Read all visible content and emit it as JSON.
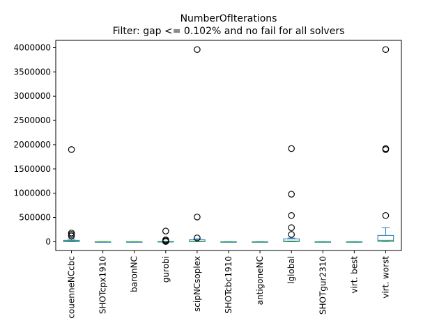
{
  "chart_data": {
    "type": "box",
    "title": "NumberOfIterations",
    "subtitle": "Filter: gap <= 0.102% and no fail for all solvers",
    "xlabel": "",
    "ylabel": "",
    "ylim": [
      -180000,
      4150000
    ],
    "yticks": [
      0,
      500000,
      1000000,
      1500000,
      2000000,
      2500000,
      3000000,
      3500000,
      4000000
    ],
    "ytick_labels": [
      "0",
      "500000",
      "1000000",
      "1500000",
      "2000000",
      "2500000",
      "3000000",
      "3500000",
      "4000000"
    ],
    "grid": false,
    "colors": {
      "box": "#1f77b4",
      "median": "#2ca02c",
      "outlier": "#000000"
    },
    "categories": [
      "couenneNCcbc",
      "SHOTcpx1910",
      "baronNC",
      "gurobi",
      "scipNCsoplex",
      "SHOTcbc1910",
      "antigoneNC",
      "lglobal",
      "SHOTgur2310",
      "virt. best",
      "virt. worst"
    ],
    "boxes": [
      {
        "name": "couenneNCcbc",
        "whisker_low": 0,
        "q1": 3000,
        "median": 12000,
        "q3": 30000,
        "whisker_high": 55000,
        "outliers": [
          1900000,
          180000,
          150000,
          120000
        ]
      },
      {
        "name": "SHOTcpx1910",
        "whisker_low": 0,
        "q1": 0,
        "median": 0,
        "q3": 1000,
        "whisker_high": 2000,
        "outliers": []
      },
      {
        "name": "baronNC",
        "whisker_low": 0,
        "q1": 0,
        "median": 0,
        "q3": 1000,
        "whisker_high": 2000,
        "outliers": []
      },
      {
        "name": "gurobi",
        "whisker_low": 0,
        "q1": 0,
        "median": 1000,
        "q3": 5000,
        "whisker_high": 12000,
        "outliers": [
          220000,
          40000,
          20000,
          5000
        ]
      },
      {
        "name": "scipNCsoplex",
        "whisker_low": 0,
        "q1": 3000,
        "median": 10000,
        "q3": 40000,
        "whisker_high": 60000,
        "outliers": [
          3960000,
          510000,
          80000
        ]
      },
      {
        "name": "SHOTcbc1910",
        "whisker_low": 0,
        "q1": 0,
        "median": 0,
        "q3": 1000,
        "whisker_high": 2000,
        "outliers": []
      },
      {
        "name": "antigoneNC",
        "whisker_low": 0,
        "q1": 0,
        "median": 0,
        "q3": 1000,
        "whisker_high": 2000,
        "outliers": []
      },
      {
        "name": "lglobal",
        "whisker_low": 0,
        "q1": 3000,
        "median": 15000,
        "q3": 60000,
        "whisker_high": 75000,
        "outliers": [
          1920000,
          980000,
          540000,
          290000,
          150000
        ]
      },
      {
        "name": "SHOTgur2310",
        "whisker_low": 0,
        "q1": 0,
        "median": 0,
        "q3": 1000,
        "whisker_high": 2000,
        "outliers": []
      },
      {
        "name": "virt. best",
        "whisker_low": 0,
        "q1": 0,
        "median": 0,
        "q3": 1000,
        "whisker_high": 2000,
        "outliers": []
      },
      {
        "name": "virt. worst",
        "whisker_low": 0,
        "q1": 5000,
        "median": 30000,
        "q3": 130000,
        "whisker_high": 290000,
        "outliers": [
          3960000,
          1920000,
          1900000,
          540000
        ]
      }
    ]
  }
}
